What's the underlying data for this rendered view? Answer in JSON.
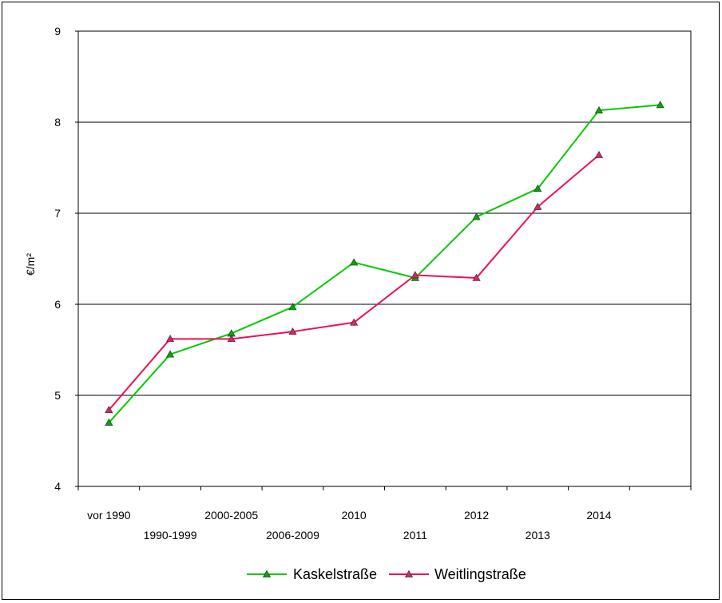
{
  "chart_data": {
    "type": "line",
    "title": "",
    "xlabel": "",
    "ylabel": "€/m²",
    "ylim": [
      4,
      9
    ],
    "yticks": [
      4,
      5,
      6,
      7,
      8,
      9
    ],
    "grid": "horizontal",
    "legend_position": "bottom",
    "categories": [
      "vor 1990",
      "1990-1999",
      "2000-2005",
      "2006-2009",
      "2010",
      "2011",
      "2012",
      "2013",
      "2014",
      ""
    ],
    "series": [
      {
        "name": "Kaskelstraße",
        "color": "#00cc00",
        "marker_color": "#00aa00",
        "values": [
          4.7,
          5.45,
          5.68,
          5.97,
          6.46,
          6.29,
          6.96,
          7.27,
          8.13,
          8.19
        ]
      },
      {
        "name": "Weitlingstraße",
        "color": "#ee1155",
        "marker_color": "#dd2266",
        "values": [
          4.84,
          5.62,
          5.62,
          5.7,
          5.8,
          6.32,
          6.29,
          7.07,
          7.64,
          null
        ]
      }
    ]
  }
}
